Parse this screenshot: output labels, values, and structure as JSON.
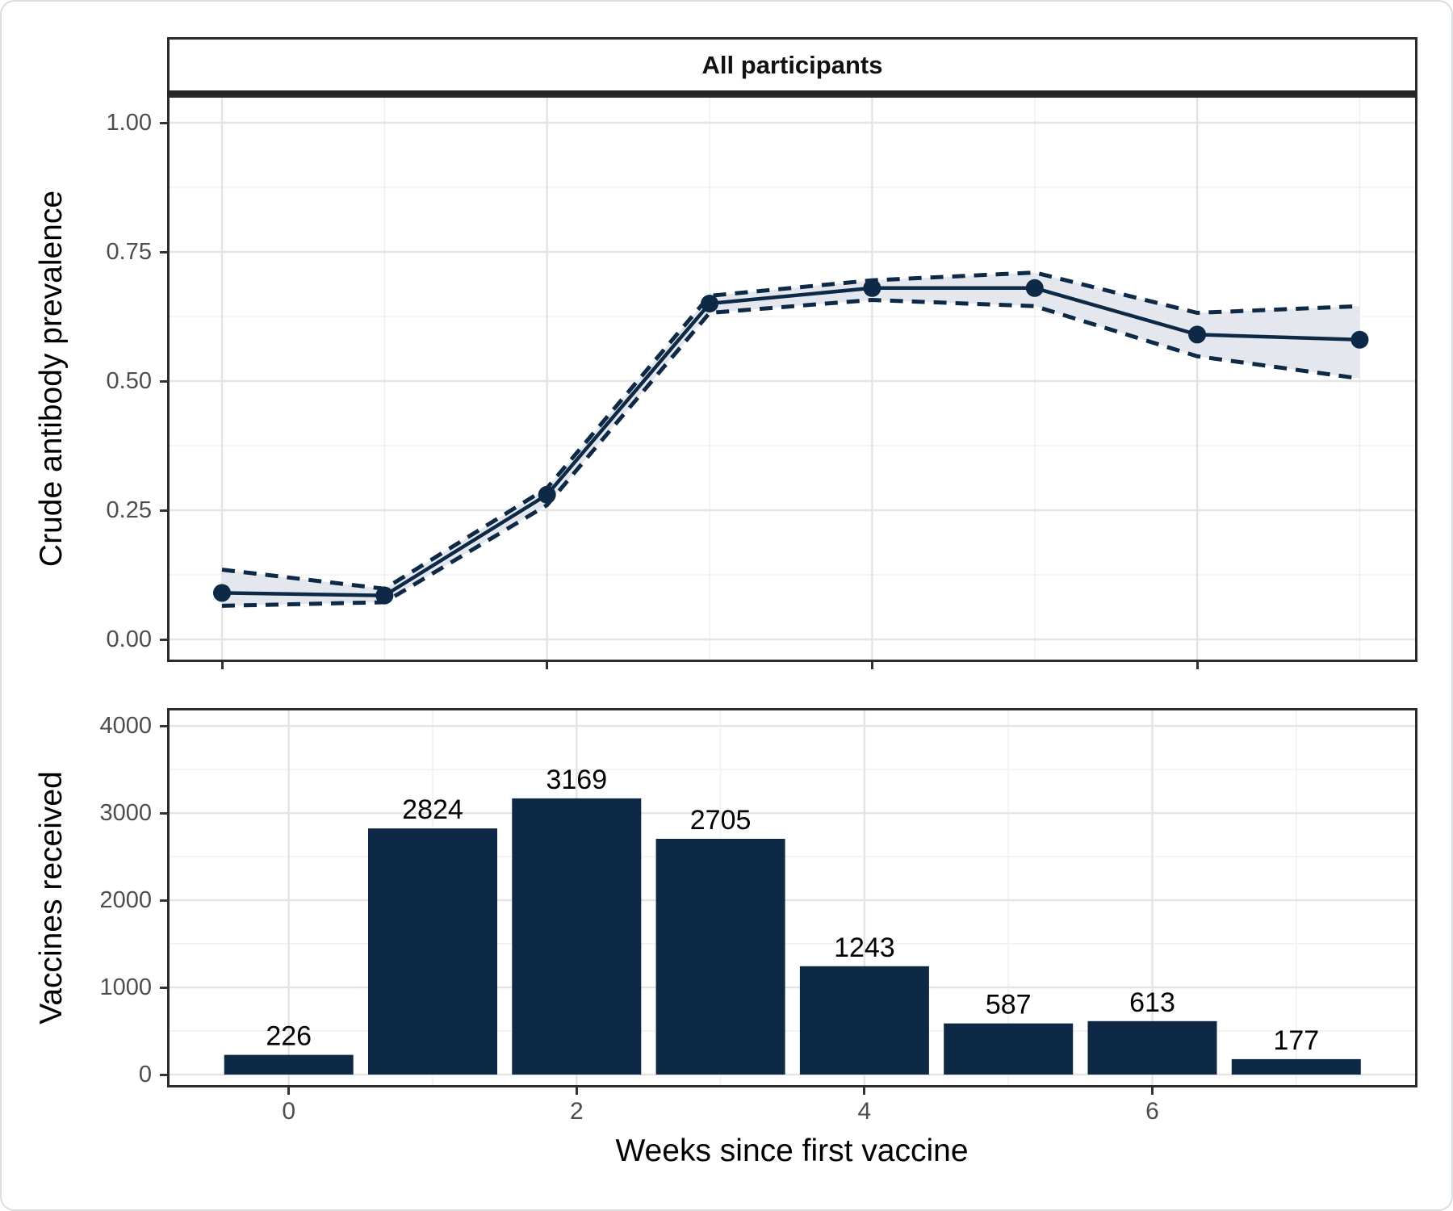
{
  "figure": {
    "strip_title": "All participants",
    "colors": {
      "navy": "#0d2946",
      "ribbon_fill": "#e4e8ee",
      "grid_major": "#e4e4e4",
      "grid_minor": "#f1f1f1",
      "panel_border": "#2b2b2b",
      "tick_text": "#4d4d4d",
      "label_text": "#000000",
      "background": "#ffffff"
    }
  },
  "chart_data": [
    {
      "type": "line",
      "title": "All participants",
      "x": [
        0,
        1,
        2,
        3,
        4,
        5,
        6,
        7
      ],
      "series": [
        {
          "name": "Crude antibody prevalence",
          "values": [
            0.09,
            0.085,
            0.28,
            0.65,
            0.68,
            0.68,
            0.59,
            0.58
          ]
        }
      ],
      "ci_lower": [
        0.065,
        0.072,
        0.26,
        0.632,
        0.657,
        0.645,
        0.548,
        0.505
      ],
      "ci_upper": [
        0.135,
        0.098,
        0.293,
        0.665,
        0.695,
        0.71,
        0.632,
        0.645
      ],
      "ci_style": "dashed-lines-with-shaded-ribbon",
      "marker": "filled-circle",
      "xlabel": "Weeks since first vaccine",
      "ylabel": "Crude antibody prevalence",
      "ylim": [
        0,
        1
      ],
      "yticks": [
        0,
        0.25,
        0.5,
        0.75,
        1
      ],
      "ytick_labels": [
        "0.00",
        "0.25",
        "0.50",
        "0.75",
        "1.00"
      ],
      "yticks_minor": [
        0.125,
        0.375,
        0.625,
        0.875
      ],
      "xticks": [
        0,
        2,
        4,
        6
      ],
      "xtick_labels": [
        "0",
        "2",
        "4",
        "6"
      ],
      "xticks_minor": [
        1,
        3,
        5,
        7
      ],
      "grid": true,
      "legend": "none"
    },
    {
      "type": "bar",
      "categories": [
        0,
        1,
        2,
        3,
        4,
        5,
        6,
        7
      ],
      "values": [
        226,
        2824,
        3169,
        2705,
        1243,
        587,
        613,
        177
      ],
      "bar_labels": [
        "226",
        "2824",
        "3169",
        "2705",
        "1243",
        "587",
        "613",
        "177"
      ],
      "xlabel": "Weeks since first vaccine",
      "ylabel": "Vaccines received",
      "ylim": [
        0,
        4000
      ],
      "yticks": [
        0,
        1000,
        2000,
        3000,
        4000
      ],
      "ytick_labels": [
        "0",
        "1000",
        "2000",
        "3000",
        "4000"
      ],
      "yticks_minor": [
        500,
        1500,
        2500,
        3500
      ],
      "xticks": [
        0,
        2,
        4,
        6
      ],
      "xtick_labels": [
        "0",
        "2",
        "4",
        "6"
      ],
      "xticks_minor": [
        1,
        3,
        5,
        7
      ],
      "grid": true,
      "legend": "none"
    }
  ]
}
